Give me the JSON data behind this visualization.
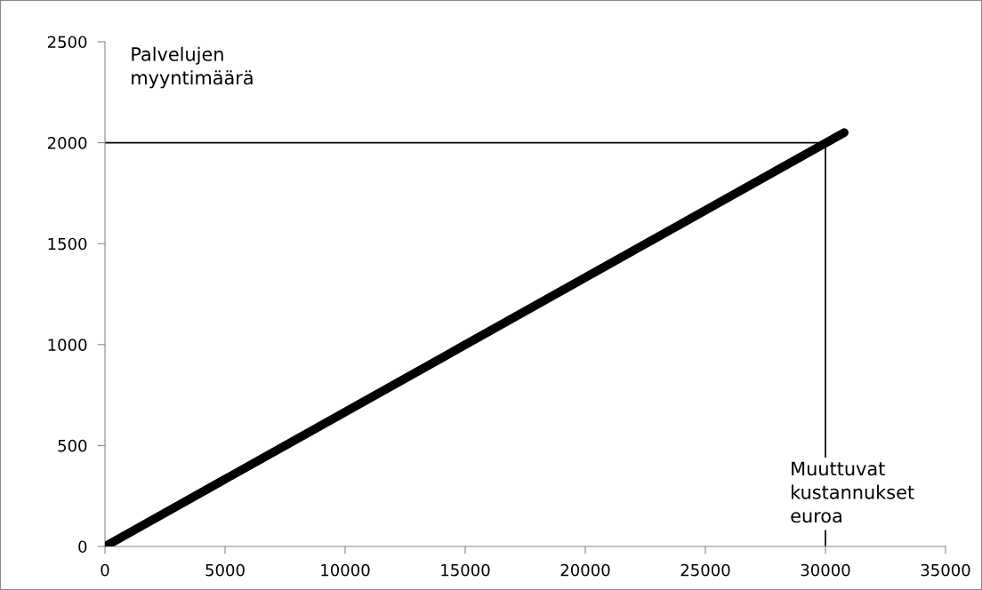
{
  "chart_data": {
    "type": "line",
    "xlabel": "Muuttuvat\nkustannukset\neuroa",
    "ylabel": "Palvelujen\nmyyntimäärä",
    "series": [
      {
        "color": "#000000",
        "x": [
          0,
          30780
        ],
        "values": [
          0,
          2050
        ]
      }
    ],
    "xlim": [
      0,
      35000
    ],
    "xticks": [
      0,
      5000,
      10000,
      15000,
      20000,
      25000,
      30000,
      35000
    ],
    "ylim": [
      0,
      2500
    ],
    "yticks": [
      0,
      500,
      1000,
      1500,
      2000,
      2500
    ],
    "ref_lines": [
      {
        "axis": "y",
        "value": 2000,
        "color": "#000000"
      },
      {
        "axis": "x",
        "value": 30000,
        "color": "#000000"
      }
    ],
    "grid": false,
    "legend": false,
    "marker": "none",
    "line_style": "solid"
  }
}
